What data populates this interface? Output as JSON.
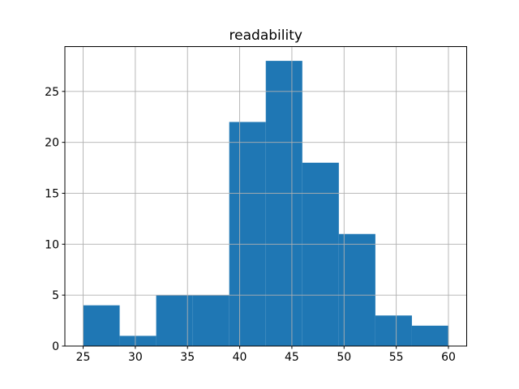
{
  "chart_data": {
    "type": "bar",
    "kind": "histogram",
    "title": "readability",
    "xlabel": "",
    "ylabel": "",
    "bin_edges": [
      25.0,
      28.5,
      32.0,
      35.5,
      39.0,
      42.5,
      46.0,
      49.5,
      53.0,
      56.5,
      60.0
    ],
    "counts": [
      4,
      1,
      5,
      5,
      22,
      28,
      18,
      11,
      3,
      2
    ],
    "x_ticks": [
      25,
      30,
      35,
      40,
      45,
      50,
      55,
      60
    ],
    "y_ticks": [
      0,
      5,
      10,
      15,
      20,
      25
    ],
    "xlim": [
      23.25,
      61.75
    ],
    "ylim": [
      0,
      29.4
    ],
    "grid": true,
    "legend": null,
    "colors": {
      "bar": "#1f77b4",
      "grid": "#b0b0b0",
      "spine": "#000000",
      "background": "#ffffff",
      "text": "#000000"
    }
  }
}
